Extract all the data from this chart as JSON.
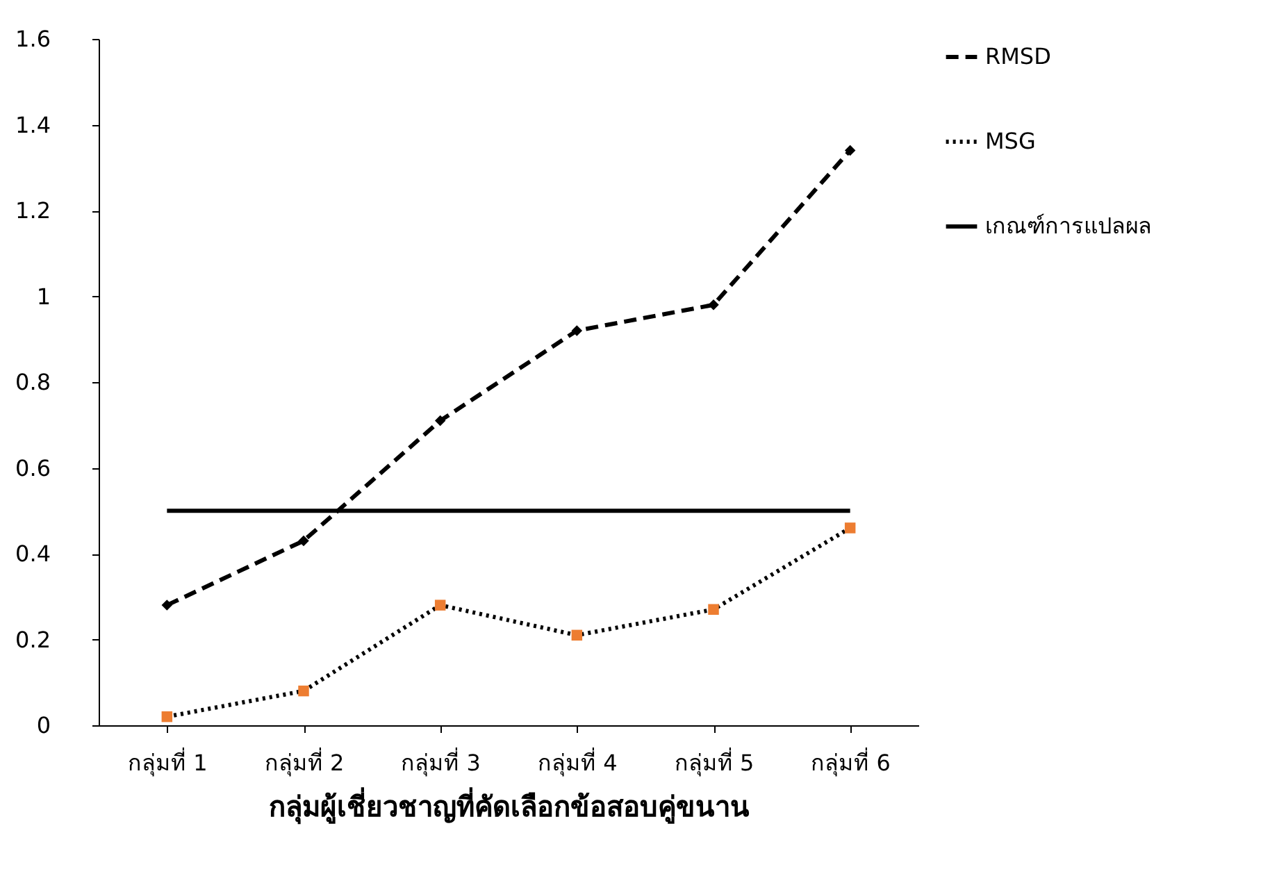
{
  "chart_data": {
    "type": "line",
    "xlabel": "กลุ่มผู้เชี่ยวชาญที่คัดเลือกข้อสอบคู่ขนาน",
    "categories": [
      "กลุ่มที่ 1",
      "กลุ่มที่ 2",
      "กลุ่มที่ 3",
      "กลุ่มที่ 4",
      "กลุ่มที่ 5",
      "กลุ่มที่ 6"
    ],
    "series": [
      {
        "name": "RMSD",
        "color": "#000000",
        "line_style": "dashed",
        "marker": "diamond",
        "values": [
          0.28,
          0.43,
          0.71,
          0.92,
          0.98,
          1.34
        ]
      },
      {
        "name": "MSG",
        "color": "#000000",
        "colors": [
          "#ed7d31",
          "#ed7d31",
          "#ed7d31",
          "#ed7d31",
          "#ed7d31",
          "#ed7d31"
        ],
        "line_style": "dotted",
        "marker": "square",
        "values": [
          0.02,
          0.08,
          0.28,
          0.21,
          0.27,
          0.46
        ]
      },
      {
        "name": "เกณฑ์การแปลผล",
        "color": "#000000",
        "line_style": "solid",
        "marker": "none",
        "values": [
          0.5,
          0.5,
          0.5,
          0.5,
          0.5,
          0.5
        ]
      }
    ],
    "ylim": [
      0,
      1.6
    ],
    "yticks": [
      0,
      0.2,
      0.4,
      0.6,
      0.8,
      1,
      1.2,
      1.4,
      1.6
    ],
    "grid": false,
    "legend": "right"
  }
}
